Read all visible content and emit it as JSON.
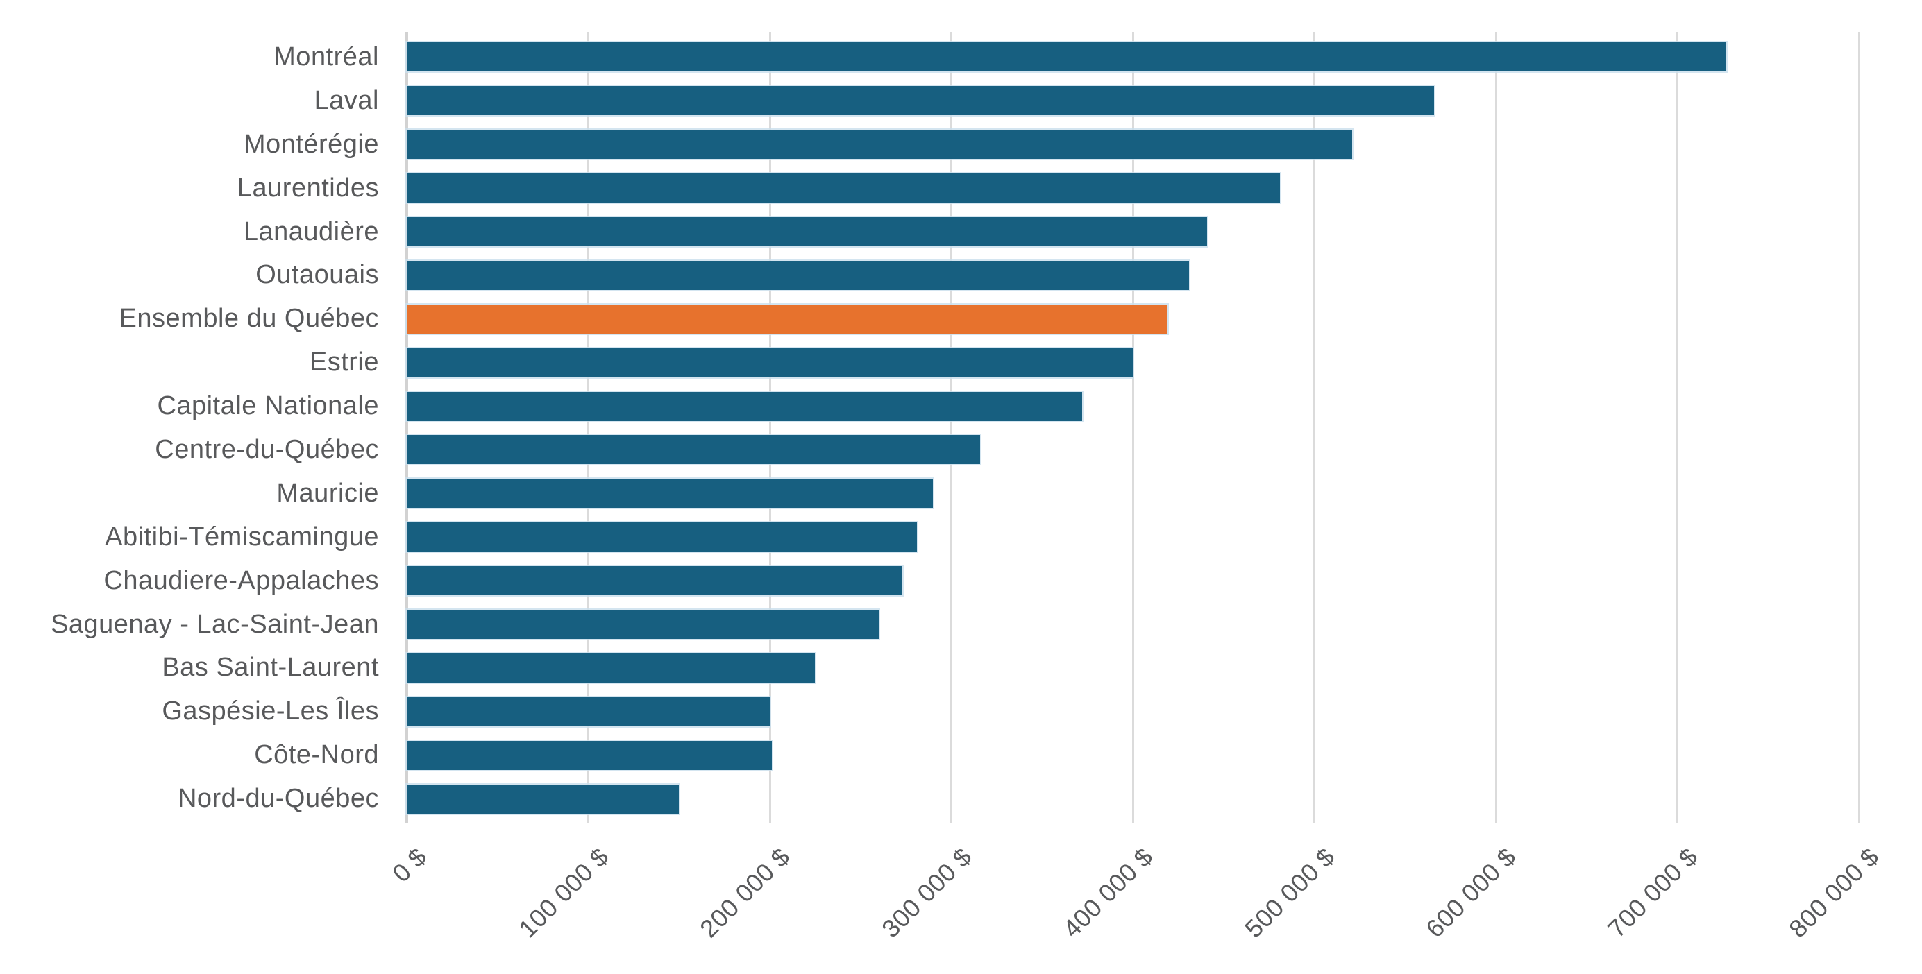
{
  "chart_data": {
    "type": "bar",
    "orientation": "horizontal",
    "title": "",
    "xlabel": "",
    "ylabel": "",
    "categories": [
      "Montréal",
      "Laval",
      "Montérégie",
      "Laurentides",
      "Lanaudière",
      "Outaouais",
      "Ensemble du Québec",
      "Estrie",
      "Capitale Nationale",
      "Centre-du-Québec",
      "Mauricie",
      "Abitibi-Témiscamingue",
      "Chaudiere-Appalaches",
      "Saguenay - Lac-Saint-Jean",
      "Bas Saint-Laurent",
      "Gaspésie-Les Îles",
      "Côte-Nord",
      "Nord-du-Québec"
    ],
    "values": [
      727000,
      566000,
      521000,
      481000,
      441000,
      431000,
      419000,
      400000,
      372000,
      316000,
      290000,
      281000,
      273000,
      260000,
      225000,
      200000,
      201000,
      150000
    ],
    "unit": "$",
    "highlight_category": "Ensemble du Québec",
    "series_color": "#175f80",
    "highlight_color": "#e7722d",
    "label_color": "#58595b",
    "gridline_color": "#dbdbdb",
    "xlim": [
      0,
      800000
    ],
    "x_tick_step": 100000,
    "x_ticks": [
      "0 $",
      "100 000 $",
      "200 000 $",
      "300 000 $",
      "400 000 $",
      "500 000 $",
      "600 000 $",
      "700 000 $",
      "800 000 $"
    ],
    "grid": "vertical",
    "legend": "none"
  }
}
